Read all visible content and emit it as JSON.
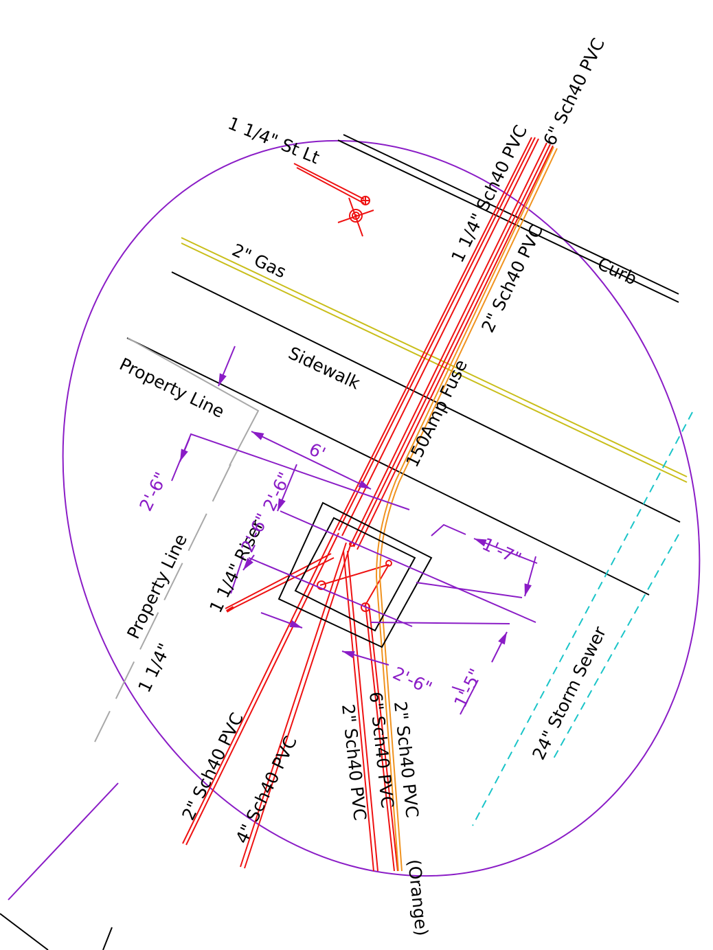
{
  "colors": {
    "border": "#8a1cc6",
    "dimension": "#8a1cc6",
    "electric": "#ee1111",
    "orange": "#f0921e",
    "gas": "#c9be1a",
    "storm": "#19c4c8",
    "property": "#a8a8a8",
    "ink": "#000000"
  },
  "labels": {
    "street_light": "1 1/4\" St Lt",
    "gas": "2\" Gas",
    "curb": "Curb",
    "sidewalk": "Sidewalk",
    "property_line_upper": "Property Line",
    "property_line_lower": "Property Line",
    "conduit_top_6in": "6\" Sch40 PVC",
    "conduit_top_114": "1 1/4\" Sch40 PVC",
    "conduit_top_2in": "2\" Sch40 PVC",
    "fuse": "150Amp Fuse",
    "riser": "1 1/4\" Riser",
    "conduit_bot_114": "1 1/4\"",
    "conduit_bot_2in": "2\" Sch40 PVC",
    "conduit_bot_4in": "4\" Sch40 PVC",
    "conduit_bot_2in_b": "2\" Sch40 PVC",
    "conduit_bot_6in": "6\" Sch40 PVC",
    "conduit_bot_2in_c": "2\" Sch40 PVC",
    "orange_note": "(Orange)",
    "storm_sewer": "24\" Storm Sewer"
  },
  "dimensions": {
    "d_6ft": "6'",
    "d_2ft6_left": "2'-6\"",
    "d_2ft6_mid": "2'-6\"",
    "d_2ft6_box": "2'-6\"",
    "d_1ft7": "1'-7\"",
    "d_1ft5": "1'-5\"",
    "d_2ft6_bottom": "2'-6\""
  }
}
